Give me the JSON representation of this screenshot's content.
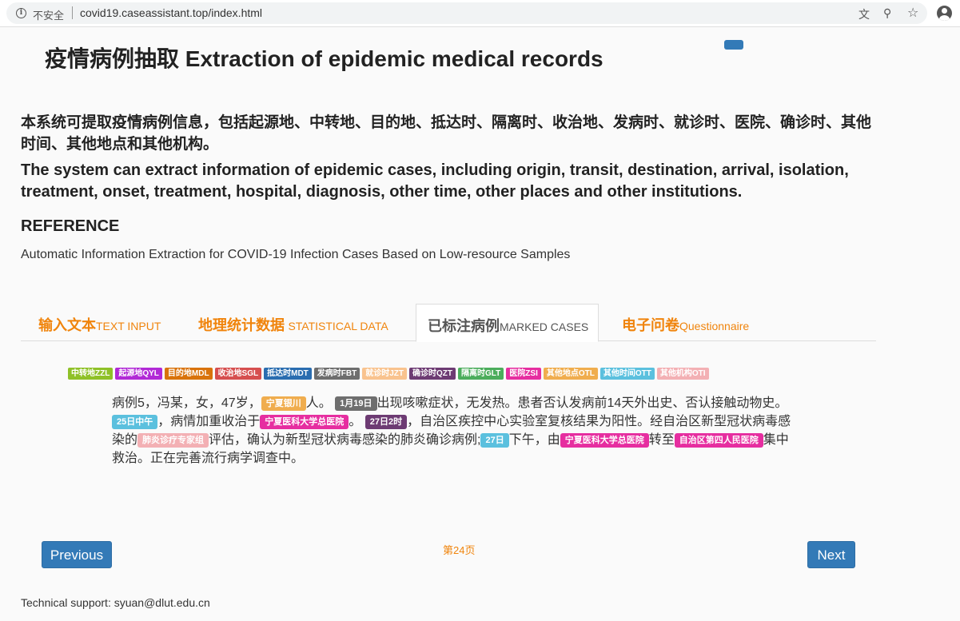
{
  "browser": {
    "security_label": "不安全",
    "url": "covid19.caseassistant.top/index.html",
    "info_glyph": "i",
    "translate_glyph": "⽂",
    "zoom_glyph": "⚲",
    "star_glyph": "☆"
  },
  "header": {
    "title": "疫情病例抽取  Extraction of epidemic medical records"
  },
  "intro": {
    "cn": "本系统可提取疫情病例信息，包括起源地、中转地、目的地、抵达时、隔离时、收治地、发病时、就诊时、医院、确诊时、其他时间、其他地点和其他机构。",
    "en": "The system can extract information of epidemic cases, including origin, transit, destination, arrival, isolation, treatment, onset, treatment, hospital, diagnosis, other time, other places and other institutions."
  },
  "reference": {
    "title": "REFERENCE",
    "text": "Automatic Information Extraction for COVID-19 Infection Cases Based on Low-resource Samples"
  },
  "tabs": [
    {
      "cn": "输入文本",
      "en": "TEXT INPUT"
    },
    {
      "cn": "地理统计数据",
      "en": "STATISTICAL DATA"
    },
    {
      "cn": "已标注病例",
      "en": "MARKED CASES"
    },
    {
      "cn": "电子问卷",
      "en": "Questionnaire"
    }
  ],
  "legend": [
    {
      "label": "中转地ZZL",
      "color": "#8fc128"
    },
    {
      "label": "起源地QYL",
      "color": "#b12ad6"
    },
    {
      "label": "目的地MDL",
      "color": "#d9730b"
    },
    {
      "label": "收治地SGL",
      "color": "#d64f4f"
    },
    {
      "label": "抵达时MDT",
      "color": "#2a6db0"
    },
    {
      "label": "发病时FBT",
      "color": "#6e6e6e"
    },
    {
      "label": "就诊时JZT",
      "color": "#f9c38e"
    },
    {
      "label": "确诊时QZT",
      "color": "#6d3b73"
    },
    {
      "label": "隔离时GLT",
      "color": "#4cad5c"
    },
    {
      "label": "医院ZSI",
      "color": "#e62ea0"
    },
    {
      "label": "其他地点OTL",
      "color": "#f0ad4e"
    },
    {
      "label": "其他时间OTT",
      "color": "#5bc0de"
    },
    {
      "label": "其他机构OTI",
      "color": "#f3b0b4"
    }
  ],
  "case": {
    "t1": "病例5，冯某，女，47岁，",
    "tag1": "宁夏银川",
    "t2": "人。",
    "tag2": "1月19日",
    "t3": "出现咳嗽症状，无发热。患者否认发病前14天外出史、否认接触动物史。",
    "tag3": "25日中午",
    "t4": "，病情加重收治于",
    "tag4": "宁夏医科大学总医院",
    "t5": "。",
    "tag5": "27日2时",
    "t6": "，自治区疾控中心实验室复核结果为阳性。经自治区新型冠状病毒感染的",
    "tag6": "肺炎诊疗专家组",
    "t7": "评估，确认为新型冠状病毒感染的肺炎确诊病例;",
    "tag7": "27日",
    "t8": "下午，由",
    "tag8": "宁夏医科大学总医院",
    "t9": "转至",
    "tag9": "自治区第四人民医院",
    "t10": "集中救治。正在完善流行病学调查中。",
    "colors": {
      "place": "#f0ad4e",
      "onset": "#6e6e6e",
      "time": "#5bc0de",
      "hospital": "#e62ea0",
      "diag": "#6d3b73",
      "inst": "#f3b0b4"
    }
  },
  "pager": {
    "prev_label": "Previous",
    "next_label": "Next",
    "page_label": "第24页"
  },
  "footer": {
    "support": "Technical support: syuan@dlut.edu.cn"
  }
}
